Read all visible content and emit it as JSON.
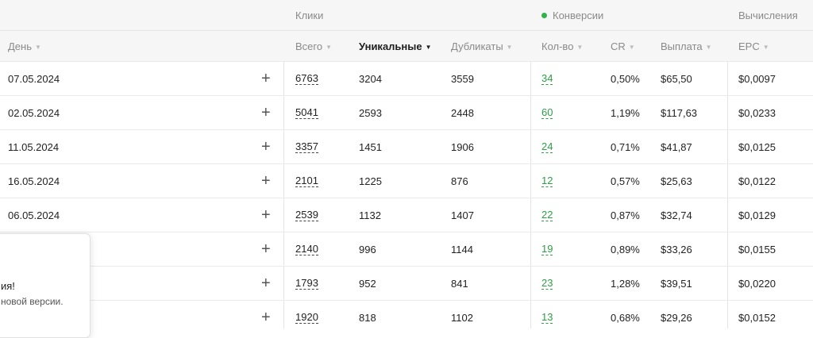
{
  "groups": {
    "clicks": "Клики",
    "conversions": "Конверсии",
    "calc": "Вычисления"
  },
  "columns": {
    "day": "День",
    "total": "Всего",
    "unique": "Уникальные",
    "dupes": "Дубликаты",
    "count": "Кол-во",
    "cr": "CR",
    "payout": "Выплата",
    "epc": "EPC"
  },
  "colors": {
    "accent_green": "#2e9e46",
    "header_bg": "#f6f6f6"
  },
  "rows": [
    {
      "date": "07.05.2024",
      "total": "6763",
      "unique": "3204",
      "dupes": "3559",
      "count": "34",
      "cr": "0,50%",
      "payout": "$65,50",
      "epc": "$0,0097"
    },
    {
      "date": "02.05.2024",
      "total": "5041",
      "unique": "2593",
      "dupes": "2448",
      "count": "60",
      "cr": "1,19%",
      "payout": "$117,63",
      "epc": "$0,0233"
    },
    {
      "date": "11.05.2024",
      "total": "3357",
      "unique": "1451",
      "dupes": "1906",
      "count": "24",
      "cr": "0,71%",
      "payout": "$41,87",
      "epc": "$0,0125"
    },
    {
      "date": "16.05.2024",
      "total": "2101",
      "unique": "1225",
      "dupes": "876",
      "count": "12",
      "cr": "0,57%",
      "payout": "$25,63",
      "epc": "$0,0122"
    },
    {
      "date": "06.05.2024",
      "total": "2539",
      "unique": "1132",
      "dupes": "1407",
      "count": "22",
      "cr": "0,87%",
      "payout": "$32,74",
      "epc": "$0,0129"
    },
    {
      "date": "",
      "total": "2140",
      "unique": "996",
      "dupes": "1144",
      "count": "19",
      "cr": "0,89%",
      "payout": "$33,26",
      "epc": "$0,0155"
    },
    {
      "date": "",
      "total": "1793",
      "unique": "952",
      "dupes": "841",
      "count": "23",
      "cr": "1,28%",
      "payout": "$39,51",
      "epc": "$0,0220"
    },
    {
      "date": "",
      "total": "1920",
      "unique": "818",
      "dupes": "1102",
      "count": "13",
      "cr": "0,68%",
      "payout": "$29,26",
      "epc": "$0,0152"
    }
  ],
  "icons": {
    "expand": "+",
    "sort": "▼"
  },
  "toast": {
    "title": "ия!",
    "text": "новой версии."
  }
}
